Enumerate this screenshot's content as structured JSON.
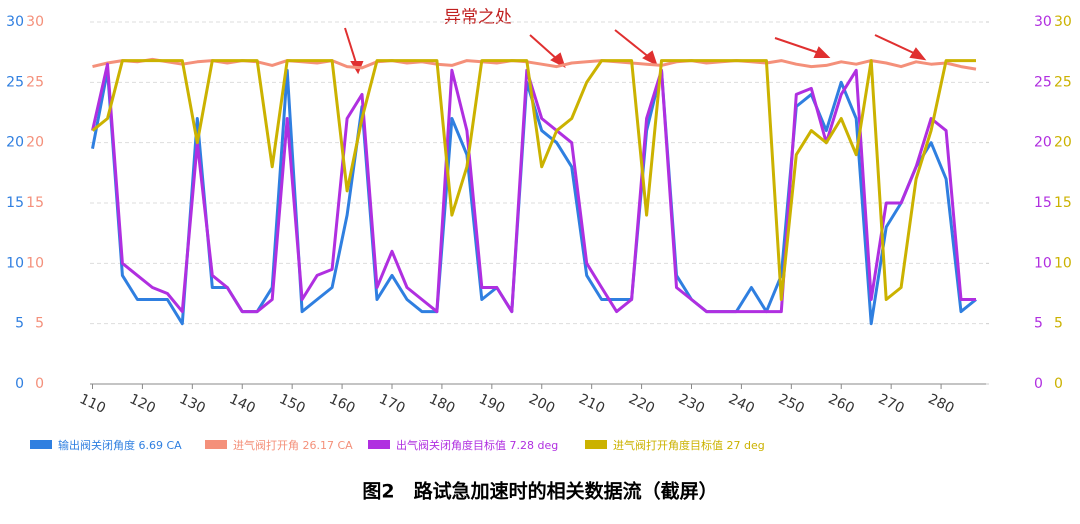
{
  "chart_data": {
    "type": "line",
    "annotation": "异常之处",
    "caption": "图2　路试急加速时的相关数据流（截屏）",
    "xlim": [
      109.5,
      289
    ],
    "xticks": [
      110,
      120,
      130,
      140,
      150,
      160,
      170,
      180,
      190,
      200,
      210,
      220,
      230,
      240,
      250,
      260,
      270,
      280
    ],
    "ylim": [
      0,
      30
    ],
    "yticks": [
      0,
      5,
      10,
      15,
      20,
      25,
      30
    ],
    "y2lim": [
      0,
      30
    ],
    "y2ticks": [
      0,
      5,
      10,
      15,
      20,
      25,
      30
    ],
    "grid": true,
    "x": [
      110,
      113,
      116,
      119,
      122,
      125,
      128,
      131,
      134,
      137,
      140,
      143,
      146,
      149,
      152,
      155,
      158,
      161,
      164,
      167,
      170,
      173,
      176,
      179,
      182,
      185,
      188,
      191,
      194,
      197,
      200,
      203,
      206,
      209,
      212,
      215,
      218,
      221,
      224,
      227,
      230,
      233,
      236,
      239,
      242,
      245,
      248,
      251,
      254,
      257,
      260,
      263,
      266,
      269,
      272,
      275,
      278,
      281,
      284,
      287
    ],
    "series": [
      {
        "name": "输出阀关闭角度 6.69 CA",
        "color": "#2f7fe0",
        "values": [
          19.5,
          26,
          9,
          7,
          7,
          7,
          5,
          22,
          8,
          8,
          6,
          6,
          8,
          26,
          6,
          7,
          8,
          14,
          23,
          7,
          9,
          7,
          6,
          6,
          22,
          19,
          7,
          8,
          6,
          25,
          21,
          20,
          18,
          9,
          7,
          7,
          7,
          21,
          26,
          9,
          7,
          6,
          6,
          6,
          8,
          6,
          9,
          23,
          24,
          21,
          25,
          22,
          5,
          13,
          15,
          18,
          20,
          17,
          6,
          7
        ]
      },
      {
        "name": "进气阀打开角 26.17 CA",
        "color": "#f4907a",
        "values": [
          26.3,
          26.6,
          26.8,
          26.7,
          26.9,
          26.7,
          26.5,
          26.7,
          26.8,
          26.6,
          26.8,
          26.7,
          26.4,
          26.8,
          26.7,
          26.6,
          26.8,
          26.3,
          26.2,
          26.7,
          26.8,
          26.6,
          26.7,
          26.5,
          26.4,
          26.8,
          26.7,
          26.6,
          26.8,
          26.7,
          26.5,
          26.3,
          26.6,
          26.7,
          26.8,
          26.7,
          26.6,
          26.5,
          26.4,
          26.7,
          26.8,
          26.6,
          26.7,
          26.8,
          26.7,
          26.6,
          26.8,
          26.5,
          26.3,
          26.4,
          26.7,
          26.5,
          26.8,
          26.6,
          26.3,
          26.7,
          26.5,
          26.6,
          26.3,
          26.1
        ]
      },
      {
        "name": "出气阀关闭角度目标值 7.28 deg",
        "color": "#b02fe0",
        "axis": "y2",
        "values": [
          21,
          26.5,
          10,
          9,
          8,
          7.5,
          6,
          20,
          9,
          8,
          6,
          6,
          7,
          22,
          7,
          9,
          9.5,
          22,
          24,
          8,
          11,
          8,
          7,
          6,
          26,
          21,
          8,
          8,
          6,
          26,
          22,
          21,
          20,
          10,
          8,
          6,
          7,
          22,
          26,
          8,
          7,
          6,
          6,
          6,
          6,
          6,
          6,
          24,
          24.5,
          20,
          24,
          26,
          7,
          15,
          15,
          18,
          22,
          21,
          7,
          7
        ]
      },
      {
        "name": "进气阀打开角度目标值 27 deg",
        "color": "#cbb200",
        "axis": "y2",
        "values": [
          21,
          22,
          26.8,
          26.8,
          26.8,
          26.8,
          26.8,
          20,
          26.8,
          26.8,
          26.8,
          26.8,
          18,
          26.8,
          26.8,
          26.8,
          26.8,
          16,
          22,
          26.8,
          26.8,
          26.8,
          26.8,
          26.8,
          14,
          18,
          26.8,
          26.8,
          26.8,
          26.8,
          18,
          21,
          22,
          25,
          26.8,
          26.8,
          26.8,
          14,
          26.8,
          26.8,
          26.8,
          26.8,
          26.8,
          26.8,
          26.8,
          26.8,
          7,
          19,
          21,
          20,
          22,
          19,
          26.8,
          7,
          8,
          17,
          21,
          26.8,
          26.8,
          26.8
        ]
      }
    ]
  }
}
